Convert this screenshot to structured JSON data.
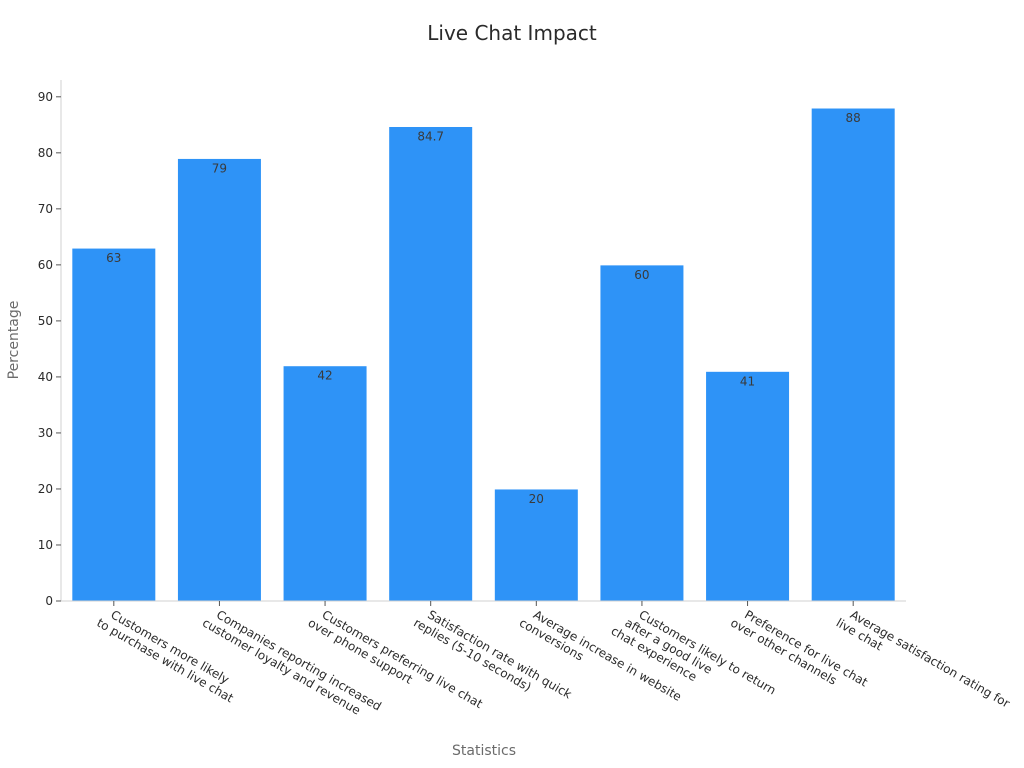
{
  "chart_data": {
    "type": "bar",
    "title": "Live Chat Impact",
    "xlabel": "Statistics",
    "ylabel": "Percentage",
    "ylim": [
      0,
      93
    ],
    "yticks": [
      0,
      10,
      20,
      30,
      40,
      50,
      60,
      70,
      80,
      90
    ],
    "grid": false,
    "bar_color": "#2e93f7",
    "categories": [
      [
        "Customers more likely",
        "to purchase with live chat"
      ],
      [
        "Companies reporting increased",
        "customer loyalty and revenue"
      ],
      [
        "Customers preferring live chat",
        "over phone support"
      ],
      [
        "Satisfaction rate with quick",
        "replies (5-10 seconds)"
      ],
      [
        "Average increase in website",
        "conversions"
      ],
      [
        "Customers likely to return",
        "after a good live",
        "chat experience"
      ],
      [
        "Preference for live chat",
        "over other channels"
      ],
      [
        "Average satisfaction rating for",
        "live chat"
      ]
    ],
    "values": [
      63,
      79,
      42,
      84.7,
      20,
      60,
      41,
      88
    ],
    "value_labels": [
      "63",
      "79",
      "42",
      "84.7",
      "20",
      "60",
      "41",
      "88"
    ]
  }
}
